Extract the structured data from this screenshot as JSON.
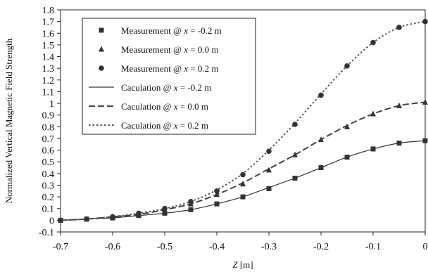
{
  "chart_data": {
    "type": "scatter",
    "xlabel": "Z [m]",
    "ylabel": "Normalized Vertical Magnetic Field Strength",
    "xlim": [
      -0.7,
      0
    ],
    "ylim": [
      -0.1,
      1.8
    ],
    "x_ticks": [
      "-0.7",
      "-0.6",
      "-0.5",
      "-0.4",
      "-0.3",
      "-0.2",
      "-0.1",
      "0"
    ],
    "y_ticks": [
      "-0.1",
      "0",
      "0.1",
      "0.2",
      "0.3",
      "0.4",
      "0.5",
      "0.6",
      "0.7",
      "0.8",
      "0.9",
      "1",
      "1.1",
      "1.2",
      "1.3",
      "1.4",
      "1.5",
      "1.6",
      "1.7",
      "1.8"
    ],
    "grid": false,
    "legend_position": "top-left",
    "series": [
      {
        "name": "Measurement @ x = -0.2 m",
        "legend": {
          "prefix": "Measurement @ ",
          "var": "x",
          "suffix": " = -0.2 m"
        },
        "kind": "marker",
        "marker": "square",
        "color": "#333333",
        "x": [
          -0.7,
          -0.65,
          -0.6,
          -0.55,
          -0.5,
          -0.45,
          -0.4,
          -0.35,
          -0.3,
          -0.25,
          -0.2,
          -0.15,
          -0.1,
          -0.05,
          0.0
        ],
        "y": [
          0.0,
          0.01,
          0.02,
          0.04,
          0.06,
          0.09,
          0.14,
          0.2,
          0.27,
          0.36,
          0.45,
          0.54,
          0.61,
          0.66,
          0.68
        ]
      },
      {
        "name": "Measurement @ x = 0.0 m",
        "legend": {
          "prefix": "Measurement @ ",
          "var": "x",
          "suffix": " = 0.0 m"
        },
        "kind": "marker",
        "marker": "triangle",
        "color": "#333333",
        "x": [
          -0.7,
          -0.65,
          -0.6,
          -0.55,
          -0.5,
          -0.45,
          -0.4,
          -0.35,
          -0.3,
          -0.25,
          -0.2,
          -0.15,
          -0.1,
          -0.05,
          0.0
        ],
        "y": [
          0.0,
          0.01,
          0.03,
          0.05,
          0.09,
          0.14,
          0.22,
          0.31,
          0.43,
          0.56,
          0.69,
          0.8,
          0.91,
          0.98,
          1.01
        ]
      },
      {
        "name": "Measurement @ x = 0.2 m",
        "legend": {
          "prefix": "Measurement @ ",
          "var": "x",
          "suffix": " = 0.2 m"
        },
        "kind": "marker",
        "marker": "circle",
        "color": "#333333",
        "x": [
          -0.7,
          -0.65,
          -0.6,
          -0.55,
          -0.5,
          -0.45,
          -0.4,
          -0.35,
          -0.3,
          -0.25,
          -0.2,
          -0.15,
          -0.1,
          -0.05,
          0.0
        ],
        "y": [
          0.0,
          0.01,
          0.03,
          0.06,
          0.1,
          0.16,
          0.25,
          0.39,
          0.59,
          0.82,
          1.07,
          1.32,
          1.52,
          1.65,
          1.7
        ]
      },
      {
        "name": "Caculation @ x = -0.2 m",
        "legend": {
          "prefix": "Caculation @ ",
          "var": "x",
          "suffix": " = -0.2 m"
        },
        "kind": "line",
        "dash": "solid",
        "color": "#333333",
        "x": [
          -0.7,
          -0.65,
          -0.6,
          -0.55,
          -0.5,
          -0.45,
          -0.4,
          -0.35,
          -0.3,
          -0.25,
          -0.2,
          -0.15,
          -0.1,
          -0.05,
          0.0
        ],
        "y": [
          0.0,
          0.01,
          0.02,
          0.04,
          0.06,
          0.09,
          0.14,
          0.2,
          0.28,
          0.36,
          0.45,
          0.54,
          0.61,
          0.66,
          0.68
        ]
      },
      {
        "name": "Caculation @ x = 0.0 m",
        "legend": {
          "prefix": "Caculation @ ",
          "var": "x",
          "suffix": " = 0.0 m"
        },
        "kind": "line",
        "dash": "longdash",
        "color": "#444444",
        "x": [
          -0.7,
          -0.65,
          -0.6,
          -0.55,
          -0.5,
          -0.45,
          -0.4,
          -0.35,
          -0.3,
          -0.25,
          -0.2,
          -0.15,
          -0.1,
          -0.05,
          0.0
        ],
        "y": [
          0.0,
          0.01,
          0.03,
          0.05,
          0.09,
          0.14,
          0.22,
          0.32,
          0.44,
          0.56,
          0.69,
          0.81,
          0.91,
          0.98,
          1.01
        ]
      },
      {
        "name": "Caculation @ x = 0.2 m",
        "legend": {
          "prefix": "Caculation @ ",
          "var": "x",
          "suffix": " = 0.2 m"
        },
        "kind": "line",
        "dash": "dotted",
        "color": "#555555",
        "x": [
          -0.7,
          -0.65,
          -0.6,
          -0.55,
          -0.5,
          -0.45,
          -0.4,
          -0.35,
          -0.3,
          -0.25,
          -0.2,
          -0.15,
          -0.1,
          -0.05,
          0.0
        ],
        "y": [
          0.0,
          0.01,
          0.03,
          0.06,
          0.1,
          0.16,
          0.26,
          0.4,
          0.6,
          0.83,
          1.08,
          1.32,
          1.52,
          1.65,
          1.7
        ]
      }
    ]
  }
}
